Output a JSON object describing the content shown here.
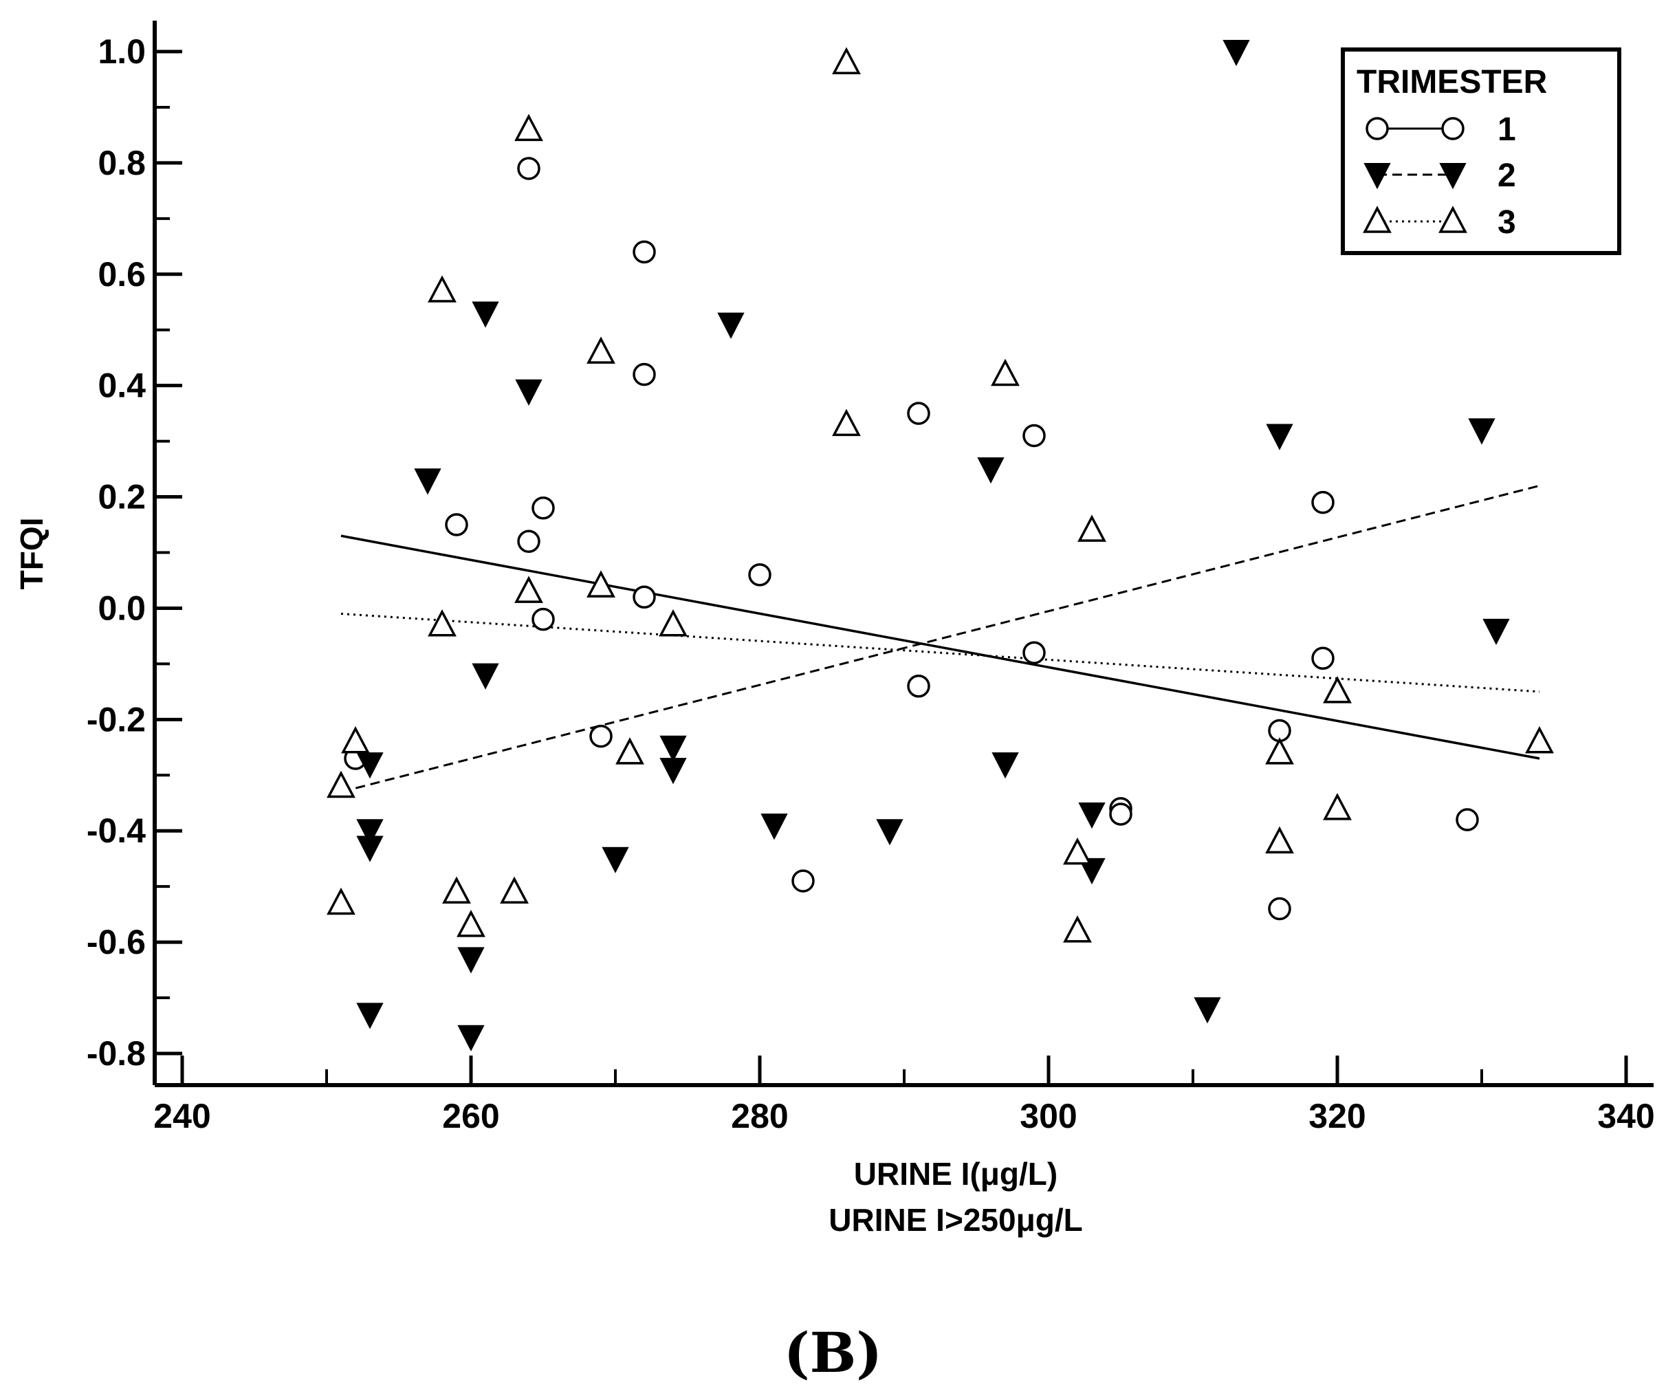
{
  "chart_data": {
    "type": "scatter",
    "xlabel": "URINE  I(μg/L)",
    "xlabel2": "URINE  I>250μg/L",
    "ylabel": "TFQI",
    "xlim": [
      240,
      340
    ],
    "ylim": [
      -0.8,
      1.0
    ],
    "x_ticks": [
      "240",
      "260",
      "280",
      "300",
      "320",
      "340"
    ],
    "y_ticks": [
      "-0.8",
      "-0.6",
      "-0.4",
      "-0.2",
      "0.0",
      "0.2",
      "0.4",
      "0.6",
      "0.8",
      "1.0"
    ],
    "legend_title": "TRIMESTER",
    "legend_position": "top-right",
    "series": [
      {
        "name": "1",
        "marker": "circle",
        "line": "solid",
        "trend": [
          [
            251,
            0.13
          ],
          [
            334,
            -0.27
          ]
        ],
        "points": [
          [
            252,
            -0.27
          ],
          [
            259,
            0.15
          ],
          [
            264,
            0.79
          ],
          [
            264,
            0.12
          ],
          [
            265,
            0.18
          ],
          [
            265,
            -0.02
          ],
          [
            269,
            -0.23
          ],
          [
            272,
            0.64
          ],
          [
            272,
            0.42
          ],
          [
            272,
            0.02
          ],
          [
            280,
            0.06
          ],
          [
            283,
            -0.49
          ],
          [
            291,
            0.35
          ],
          [
            291,
            -0.14
          ],
          [
            299,
            0.31
          ],
          [
            299,
            -0.08
          ],
          [
            305,
            -0.36
          ],
          [
            305,
            -0.37
          ],
          [
            316,
            -0.22
          ],
          [
            316,
            -0.54
          ],
          [
            319,
            0.19
          ],
          [
            319,
            -0.09
          ],
          [
            329,
            -0.38
          ]
        ]
      },
      {
        "name": "2",
        "marker": "triangle-down-filled",
        "line": "dashed",
        "trend": [
          [
            251,
            -0.33
          ],
          [
            334,
            0.22
          ]
        ],
        "points": [
          [
            253,
            -0.28
          ],
          [
            253,
            -0.4
          ],
          [
            253,
            -0.43
          ],
          [
            253,
            -0.73
          ],
          [
            257,
            0.23
          ],
          [
            260,
            -0.63
          ],
          [
            260,
            -0.77
          ],
          [
            261,
            0.53
          ],
          [
            261,
            -0.12
          ],
          [
            264,
            0.39
          ],
          [
            270,
            -0.45
          ],
          [
            274,
            -0.25
          ],
          [
            274,
            -0.29
          ],
          [
            278,
            0.51
          ],
          [
            281,
            -0.39
          ],
          [
            289,
            -0.4
          ],
          [
            296,
            0.25
          ],
          [
            297,
            -0.28
          ],
          [
            303,
            -0.37
          ],
          [
            303,
            -0.47
          ],
          [
            311,
            -0.72
          ],
          [
            313,
            1.0
          ],
          [
            316,
            0.31
          ],
          [
            330,
            0.32
          ],
          [
            331,
            -0.04
          ]
        ]
      },
      {
        "name": "3",
        "marker": "triangle-up-open",
        "line": "dotted",
        "trend": [
          [
            251,
            -0.01
          ],
          [
            334,
            -0.15
          ]
        ],
        "points": [
          [
            251,
            -0.32
          ],
          [
            251,
            -0.53
          ],
          [
            252,
            -0.24
          ],
          [
            258,
            0.57
          ],
          [
            258,
            -0.03
          ],
          [
            259,
            -0.51
          ],
          [
            260,
            -0.57
          ],
          [
            263,
            -0.51
          ],
          [
            264,
            0.86
          ],
          [
            264,
            0.03
          ],
          [
            269,
            0.46
          ],
          [
            269,
            0.04
          ],
          [
            271,
            -0.26
          ],
          [
            274,
            -0.03
          ],
          [
            286,
            0.98
          ],
          [
            286,
            0.33
          ],
          [
            297,
            0.42
          ],
          [
            302,
            -0.44
          ],
          [
            302,
            -0.58
          ],
          [
            303,
            0.14
          ],
          [
            316,
            -0.26
          ],
          [
            316,
            -0.42
          ],
          [
            320,
            -0.15
          ],
          [
            320,
            -0.36
          ],
          [
            334,
            -0.24
          ]
        ]
      }
    ]
  },
  "panel_label": "(B)"
}
